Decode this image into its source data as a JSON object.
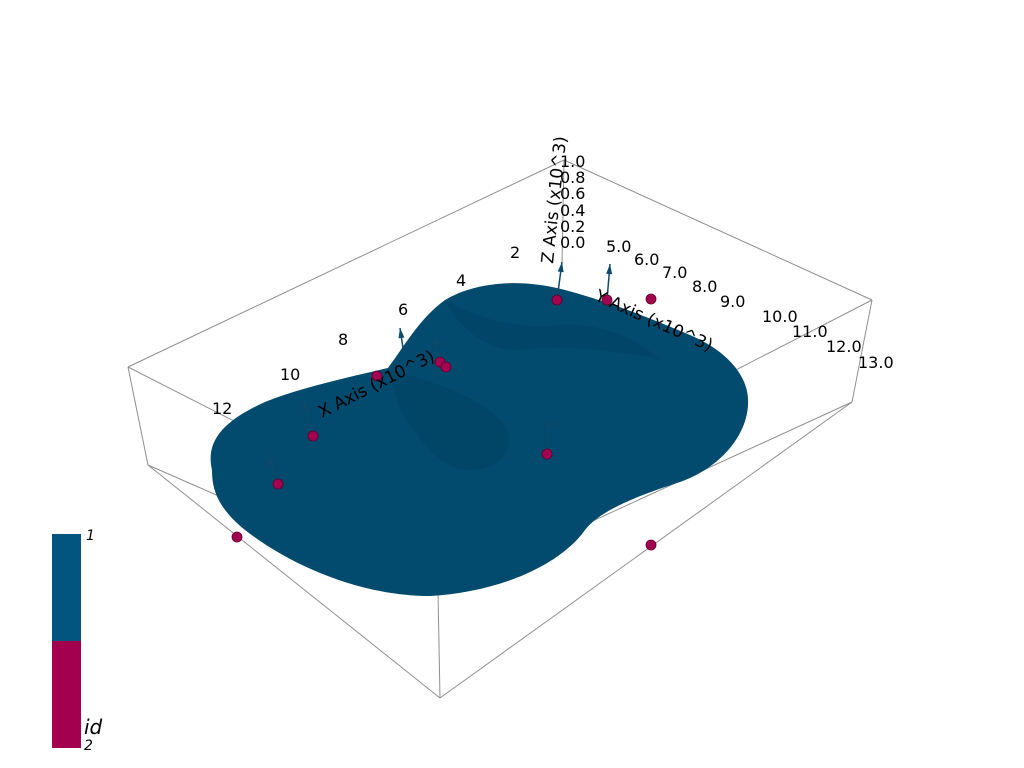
{
  "axes": {
    "x": {
      "title": "X Axis (x10^3)",
      "ticks": [
        "2",
        "4",
        "6",
        "8",
        "10",
        "12"
      ]
    },
    "y": {
      "title": "Y Axis (x10^3)",
      "ticks": [
        "5.0",
        "6.0",
        "7.0",
        "8.0",
        "9.0",
        "10.0",
        "11.0",
        "12.0",
        "13.0"
      ]
    },
    "z": {
      "title": "Z Axis (x10^3)",
      "ticks": [
        "0.0",
        "0.2",
        "0.4",
        "0.6",
        "0.8",
        "1.0"
      ]
    }
  },
  "colors": {
    "surface": "#024a6e",
    "points": "#a3044f",
    "bbox": "#8f8f8f",
    "arrows": "#0d4a6a"
  },
  "colorbar": {
    "title": "id",
    "max_label": "1",
    "min_label": "2",
    "colors": [
      "#02557f",
      "#a3004f"
    ]
  }
}
